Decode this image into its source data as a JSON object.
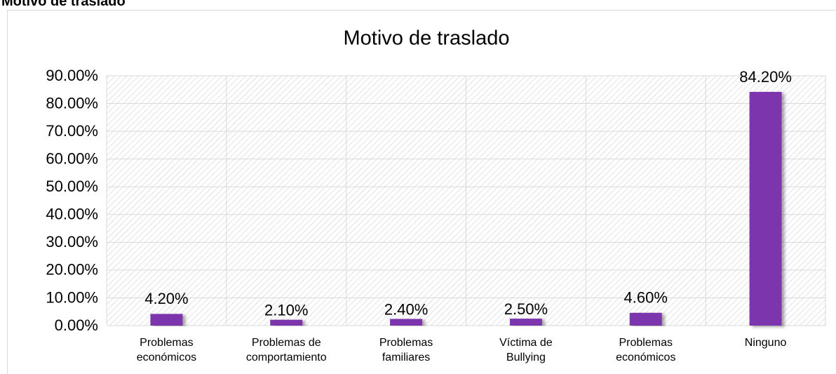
{
  "page_heading": "Motivo de traslado",
  "chart_data": {
    "type": "bar",
    "title": "Motivo de traslado",
    "categories": [
      "Problemas\neconómicos",
      "Problemas de\ncomportamiento",
      "Problemas\nfamiliares",
      "Víctima de\nBullying",
      "Problemas\neconómicos",
      "Ninguno"
    ],
    "values": [
      4.2,
      2.1,
      2.4,
      2.5,
      4.6,
      84.2
    ],
    "value_labels": [
      "4.20%",
      "2.10%",
      "2.40%",
      "2.50%",
      "4.60%",
      "84.20%"
    ],
    "color": "#7b35ac",
    "ylim": [
      0,
      90
    ],
    "yticks": [
      {
        "value": 0,
        "label": "0.00%"
      },
      {
        "value": 10,
        "label": "10.00%"
      },
      {
        "value": 20,
        "label": "20.00%"
      },
      {
        "value": 30,
        "label": "30.00%"
      },
      {
        "value": 40,
        "label": "40.00%"
      },
      {
        "value": 50,
        "label": "50.00%"
      },
      {
        "value": 60,
        "label": "60.00%"
      },
      {
        "value": 70,
        "label": "70.00%"
      },
      {
        "value": 80,
        "label": "80.00%"
      },
      {
        "value": 90,
        "label": "90.00%"
      }
    ],
    "grid": true
  }
}
